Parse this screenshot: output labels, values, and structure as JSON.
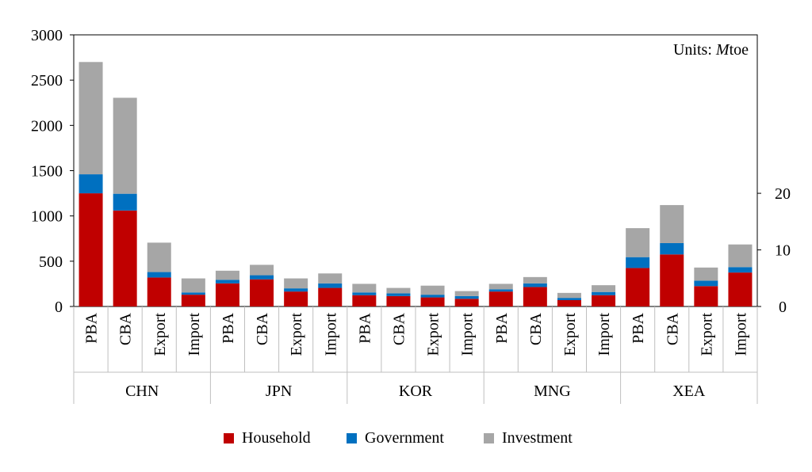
{
  "chart_data": {
    "type": "bar",
    "stacked": true,
    "units_prefix": "Units: ",
    "units_var": "M",
    "units_suffix": "toe",
    "ylim": [
      0,
      3000
    ],
    "yticks": [
      "0",
      "500",
      "1000",
      "1500",
      "2000",
      "2500",
      "3000"
    ],
    "y2lim": [
      0,
      48
    ],
    "y2ticks": [
      "0",
      "10",
      "20"
    ],
    "grid": false,
    "legend_position": "bottom",
    "groups": [
      {
        "name": "CHN",
        "categories": [
          "PBA",
          "CBA",
          "Export",
          "Import"
        ]
      },
      {
        "name": "JPN",
        "categories": [
          "PBA",
          "CBA",
          "Export",
          "Import"
        ]
      },
      {
        "name": "KOR",
        "categories": [
          "PBA",
          "CBA",
          "Export",
          "Import"
        ]
      },
      {
        "name": "MNG",
        "categories": [
          "PBA",
          "CBA",
          "Export",
          "Import"
        ]
      },
      {
        "name": "XEA",
        "categories": [
          "PBA",
          "CBA",
          "Export",
          "Import"
        ]
      }
    ],
    "series": [
      {
        "name": "Household",
        "color": "#c00000",
        "values": [
          1250,
          1060,
          320,
          130,
          255,
          300,
          165,
          205,
          125,
          115,
          100,
          85,
          165,
          215,
          70,
          125,
          425,
          575,
          225,
          375
        ]
      },
      {
        "name": "Government",
        "color": "#0070c0",
        "values": [
          210,
          185,
          60,
          25,
          40,
          45,
          35,
          50,
          30,
          30,
          30,
          30,
          25,
          40,
          25,
          35,
          120,
          125,
          60,
          60
        ]
      },
      {
        "name": "Investment",
        "color": "#a6a6a6",
        "values": [
          1240,
          1060,
          325,
          155,
          100,
          115,
          110,
          110,
          95,
          60,
          100,
          55,
          60,
          70,
          55,
          75,
          320,
          420,
          145,
          250
        ]
      }
    ]
  }
}
